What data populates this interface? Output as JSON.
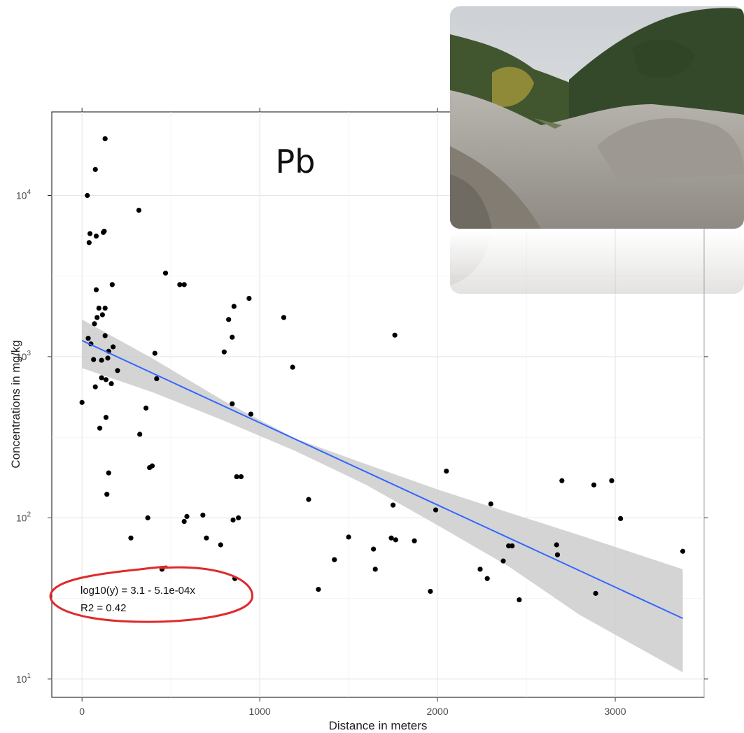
{
  "chart_data": {
    "type": "scatter",
    "title": "Pb",
    "xlabel": "Distance in meters",
    "ylabel": "Concentrations in mg/kg",
    "xlim": [
      -170,
      3500
    ],
    "ylim": [
      7.7,
      33000
    ],
    "y_scale": "log10",
    "grid": true,
    "x_ticks": [
      0,
      1000,
      2000,
      3000
    ],
    "x_tick_labels": [
      "0",
      "1000",
      "2000",
      "3000"
    ],
    "y_ticks": [
      10,
      100,
      1000,
      10000
    ],
    "y_tick_labels": [
      {
        "base": "10",
        "exp": "1"
      },
      {
        "base": "10",
        "exp": "2"
      },
      {
        "base": "10",
        "exp": "3"
      },
      {
        "base": "10",
        "exp": "4"
      }
    ],
    "series": [
      {
        "type": "points",
        "color": "#000000",
        "points": [
          [
            0,
            520
          ],
          [
            30,
            10000
          ],
          [
            35,
            1300
          ],
          [
            40,
            5100
          ],
          [
            45,
            5800
          ],
          [
            50,
            1200
          ],
          [
            65,
            960
          ],
          [
            70,
            1600
          ],
          [
            75,
            650
          ],
          [
            75,
            14500
          ],
          [
            80,
            5600
          ],
          [
            80,
            2600
          ],
          [
            85,
            1750
          ],
          [
            95,
            2000
          ],
          [
            100,
            360
          ],
          [
            110,
            740
          ],
          [
            110,
            950
          ],
          [
            115,
            1820
          ],
          [
            120,
            5900
          ],
          [
            125,
            6000
          ],
          [
            130,
            22500
          ],
          [
            130,
            2000
          ],
          [
            130,
            1350
          ],
          [
            135,
            420
          ],
          [
            135,
            720
          ],
          [
            140,
            140
          ],
          [
            145,
            980
          ],
          [
            150,
            1080
          ],
          [
            150,
            190
          ],
          [
            165,
            680
          ],
          [
            170,
            2800
          ],
          [
            175,
            1150
          ],
          [
            200,
            820
          ],
          [
            275,
            75
          ],
          [
            320,
            8100
          ],
          [
            325,
            330
          ],
          [
            360,
            480
          ],
          [
            370,
            100
          ],
          [
            380,
            205
          ],
          [
            395,
            210
          ],
          [
            410,
            1050
          ],
          [
            420,
            730
          ],
          [
            450,
            48
          ],
          [
            470,
            3300
          ],
          [
            550,
            2800
          ],
          [
            575,
            2800
          ],
          [
            575,
            95
          ],
          [
            590,
            102
          ],
          [
            680,
            104
          ],
          [
            700,
            75
          ],
          [
            780,
            68
          ],
          [
            800,
            1070
          ],
          [
            825,
            1700
          ],
          [
            845,
            510
          ],
          [
            845,
            1320
          ],
          [
            850,
            97
          ],
          [
            855,
            2050
          ],
          [
            860,
            42
          ],
          [
            870,
            180
          ],
          [
            880,
            100
          ],
          [
            895,
            180
          ],
          [
            940,
            2300
          ],
          [
            950,
            440
          ],
          [
            1135,
            1750
          ],
          [
            1185,
            860
          ],
          [
            1275,
            130
          ],
          [
            1330,
            36
          ],
          [
            1420,
            55
          ],
          [
            1500,
            76
          ],
          [
            1640,
            64
          ],
          [
            1650,
            48
          ],
          [
            1740,
            75
          ],
          [
            1750,
            120
          ],
          [
            1760,
            1360
          ],
          [
            1765,
            73
          ],
          [
            1870,
            72
          ],
          [
            1960,
            35
          ],
          [
            1990,
            112
          ],
          [
            2050,
            195
          ],
          [
            2240,
            48
          ],
          [
            2280,
            42
          ],
          [
            2300,
            122
          ],
          [
            2370,
            54
          ],
          [
            2400,
            67
          ],
          [
            2420,
            67
          ],
          [
            2460,
            31
          ],
          [
            2670,
            68
          ],
          [
            2675,
            59
          ],
          [
            2700,
            170
          ],
          [
            2880,
            160
          ],
          [
            2890,
            34
          ],
          [
            2980,
            170
          ],
          [
            3030,
            99
          ],
          [
            3380,
            62
          ]
        ]
      },
      {
        "type": "fit_line",
        "color": "#3366ff",
        "equation": {
          "intercept": 3.1,
          "slope": -0.00051
        },
        "x_range": [
          0,
          3380
        ],
        "ci_color": "#cccccc",
        "ci_upper": [
          [
            0,
            1700
          ],
          [
            400,
            970
          ],
          [
            800,
            530
          ],
          [
            1200,
            310
          ],
          [
            1600,
            215
          ],
          [
            2000,
            150
          ],
          [
            2400,
            108
          ],
          [
            2800,
            78
          ],
          [
            3380,
            48
          ]
        ],
        "ci_lower": [
          [
            0,
            850
          ],
          [
            400,
            600
          ],
          [
            800,
            400
          ],
          [
            1200,
            260
          ],
          [
            1600,
            160
          ],
          [
            2000,
            90
          ],
          [
            2400,
            50
          ],
          [
            2800,
            25
          ],
          [
            3380,
            11
          ]
        ]
      }
    ],
    "annotations": {
      "equation_text": "log10(y) = 3.1 - 5.1e-04x",
      "r2_text": "R2 = 0.42",
      "highlight_color": "#e02a2a"
    }
  },
  "photo": {
    "name": "valley-photo",
    "colors": {
      "sky": "#d4d8dc",
      "forest": "#3c5130",
      "autumn": "#9b8a3a",
      "slope": "#a8a49c",
      "scree": "#b7b4ae"
    }
  }
}
